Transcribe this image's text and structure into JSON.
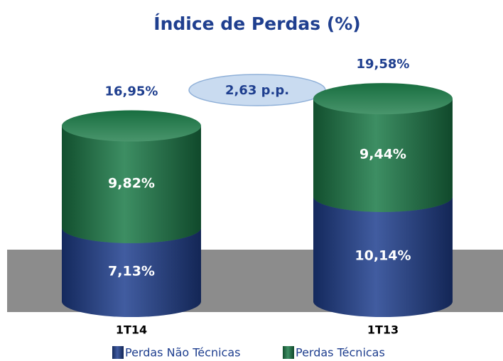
{
  "chart_data": {
    "type": "bar",
    "stacked": true,
    "title": "Índice de Perdas (%)",
    "categories": [
      "1T14",
      "1T13"
    ],
    "series": [
      {
        "name": "Perdas Não Técnicas",
        "color": "#1f3f8f",
        "values": [
          7.13,
          10.14
        ],
        "value_labels": [
          "7,13%",
          "10,14%"
        ]
      },
      {
        "name": "Perdas Técnicas",
        "color": "#1b7a47",
        "values": [
          9.82,
          9.44
        ],
        "value_labels": [
          "9,82%",
          "9,44%"
        ]
      }
    ],
    "totals": [
      16.95,
      19.58
    ],
    "total_labels": [
      "16,95%",
      "19,58%"
    ],
    "annotation": "2,63 p.p.",
    "legend": "bottom"
  }
}
